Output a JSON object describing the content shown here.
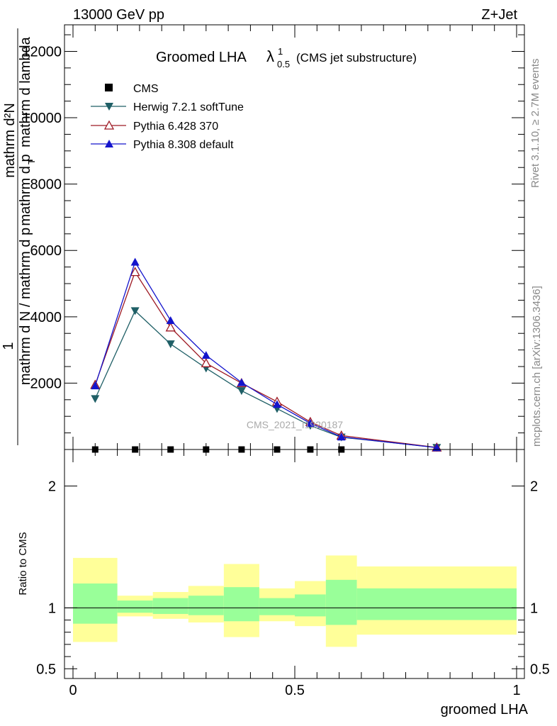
{
  "header": {
    "left": "13000 GeV pp",
    "right": "Z+Jet"
  },
  "side_labels": {
    "rivet": "Rivet 3.1.10, ≥ 2.7M events",
    "mcplots": "mcplots.cern.ch [arXiv:1306.3436]"
  },
  "chart_data": [
    {
      "type": "line",
      "title_main": "Groomed LHA",
      "title_symbol": "λ",
      "title_sup": "1",
      "title_sub": "0.5",
      "title_note": "(CMS jet substructure)",
      "watermark": "CMS_2021_I1920187",
      "ylabel_top": "1",
      "ylabel_numerator": "mathrm d²N",
      "ylabel_denominator": "mathrm d N / mathrm d p",
      "ylabel_main": "mathrm d p",
      "ylabel_sub": "T",
      "ylabel_tail": "mathrm d lambda",
      "ylim": [
        0,
        12800
      ],
      "xlim": [
        -0.02,
        1.01
      ],
      "yticks": [
        {
          "v": 2000,
          "label": "2000"
        },
        {
          "v": 4000,
          "label": "4000"
        },
        {
          "v": 6000,
          "label": "6000"
        },
        {
          "v": 8000,
          "label": "8000"
        },
        {
          "v": 10000,
          "label": "10000"
        },
        {
          "v": 12000,
          "label": "12000"
        }
      ],
      "legend_placement": "top-left",
      "cms": {
        "name": "CMS",
        "x": [
          0.05,
          0.14,
          0.22,
          0.3,
          0.38,
          0.46,
          0.535,
          0.605
        ],
        "y": [
          0,
          0,
          0,
          0,
          0,
          0,
          0,
          0
        ]
      },
      "series": [
        {
          "name": "Herwig 7.2.1 softTune",
          "color": "#1f5f66",
          "marker": "triangle-down-filled",
          "x": [
            0.05,
            0.14,
            0.22,
            0.3,
            0.38,
            0.46,
            0.535,
            0.605,
            0.82
          ],
          "y": [
            1530,
            4180,
            3180,
            2450,
            1770,
            1230,
            720,
            370,
            60
          ]
        },
        {
          "name": "Pythia 6.428 370",
          "color": "#9e1a24",
          "marker": "triangle-up-open",
          "x": [
            0.05,
            0.14,
            0.22,
            0.3,
            0.38,
            0.46,
            0.535,
            0.605,
            0.82
          ],
          "y": [
            1950,
            5350,
            3680,
            2600,
            2000,
            1440,
            830,
            420,
            60
          ]
        },
        {
          "name": "Pythia 8.308 default",
          "color": "#1414cc",
          "marker": "triangle-up-filled",
          "x": [
            0.05,
            0.14,
            0.22,
            0.3,
            0.38,
            0.46,
            0.535,
            0.605,
            0.82
          ],
          "y": [
            1920,
            5650,
            3890,
            2840,
            2020,
            1360,
            790,
            380,
            55
          ]
        }
      ]
    },
    {
      "type": "area",
      "ylabel": "Ratio to CMS",
      "xlabel": "groomed LHA",
      "ylim": [
        0.42,
        2.3
      ],
      "xlim": [
        -0.02,
        1.01
      ],
      "yticks": [
        {
          "v": 0.5,
          "label": "0.5"
        },
        {
          "v": 1,
          "label": "1"
        },
        {
          "v": 2,
          "label": "2"
        }
      ],
      "xticks": [
        {
          "v": 0,
          "label": "0"
        },
        {
          "v": 0.5,
          "label": "0.5"
        },
        {
          "v": 1,
          "label": "1"
        }
      ],
      "reference": 1,
      "inner_color": "#99ff99",
      "outer_color": "#ffff99",
      "bins": [
        {
          "x0": 0.0,
          "x1": 0.1,
          "inner": [
            0.87,
            1.2
          ],
          "outer": [
            0.72,
            1.41
          ]
        },
        {
          "x0": 0.1,
          "x1": 0.18,
          "inner": [
            0.96,
            1.06
          ],
          "outer": [
            0.93,
            1.1
          ]
        },
        {
          "x0": 0.18,
          "x1": 0.26,
          "inner": [
            0.95,
            1.08
          ],
          "outer": [
            0.91,
            1.13
          ]
        },
        {
          "x0": 0.26,
          "x1": 0.34,
          "inner": [
            0.94,
            1.1
          ],
          "outer": [
            0.88,
            1.18
          ]
        },
        {
          "x0": 0.34,
          "x1": 0.42,
          "inner": [
            0.89,
            1.17
          ],
          "outer": [
            0.76,
            1.36
          ]
        },
        {
          "x0": 0.42,
          "x1": 0.5,
          "inner": [
            0.94,
            1.08
          ],
          "outer": [
            0.89,
            1.16
          ]
        },
        {
          "x0": 0.5,
          "x1": 0.57,
          "inner": [
            0.93,
            1.11
          ],
          "outer": [
            0.85,
            1.22
          ]
        },
        {
          "x0": 0.57,
          "x1": 0.64,
          "inner": [
            0.86,
            1.23
          ],
          "outer": [
            0.68,
            1.43
          ]
        },
        {
          "x0": 0.64,
          "x1": 1.0,
          "inner": [
            0.9,
            1.16
          ],
          "outer": [
            0.78,
            1.34
          ]
        }
      ]
    }
  ]
}
